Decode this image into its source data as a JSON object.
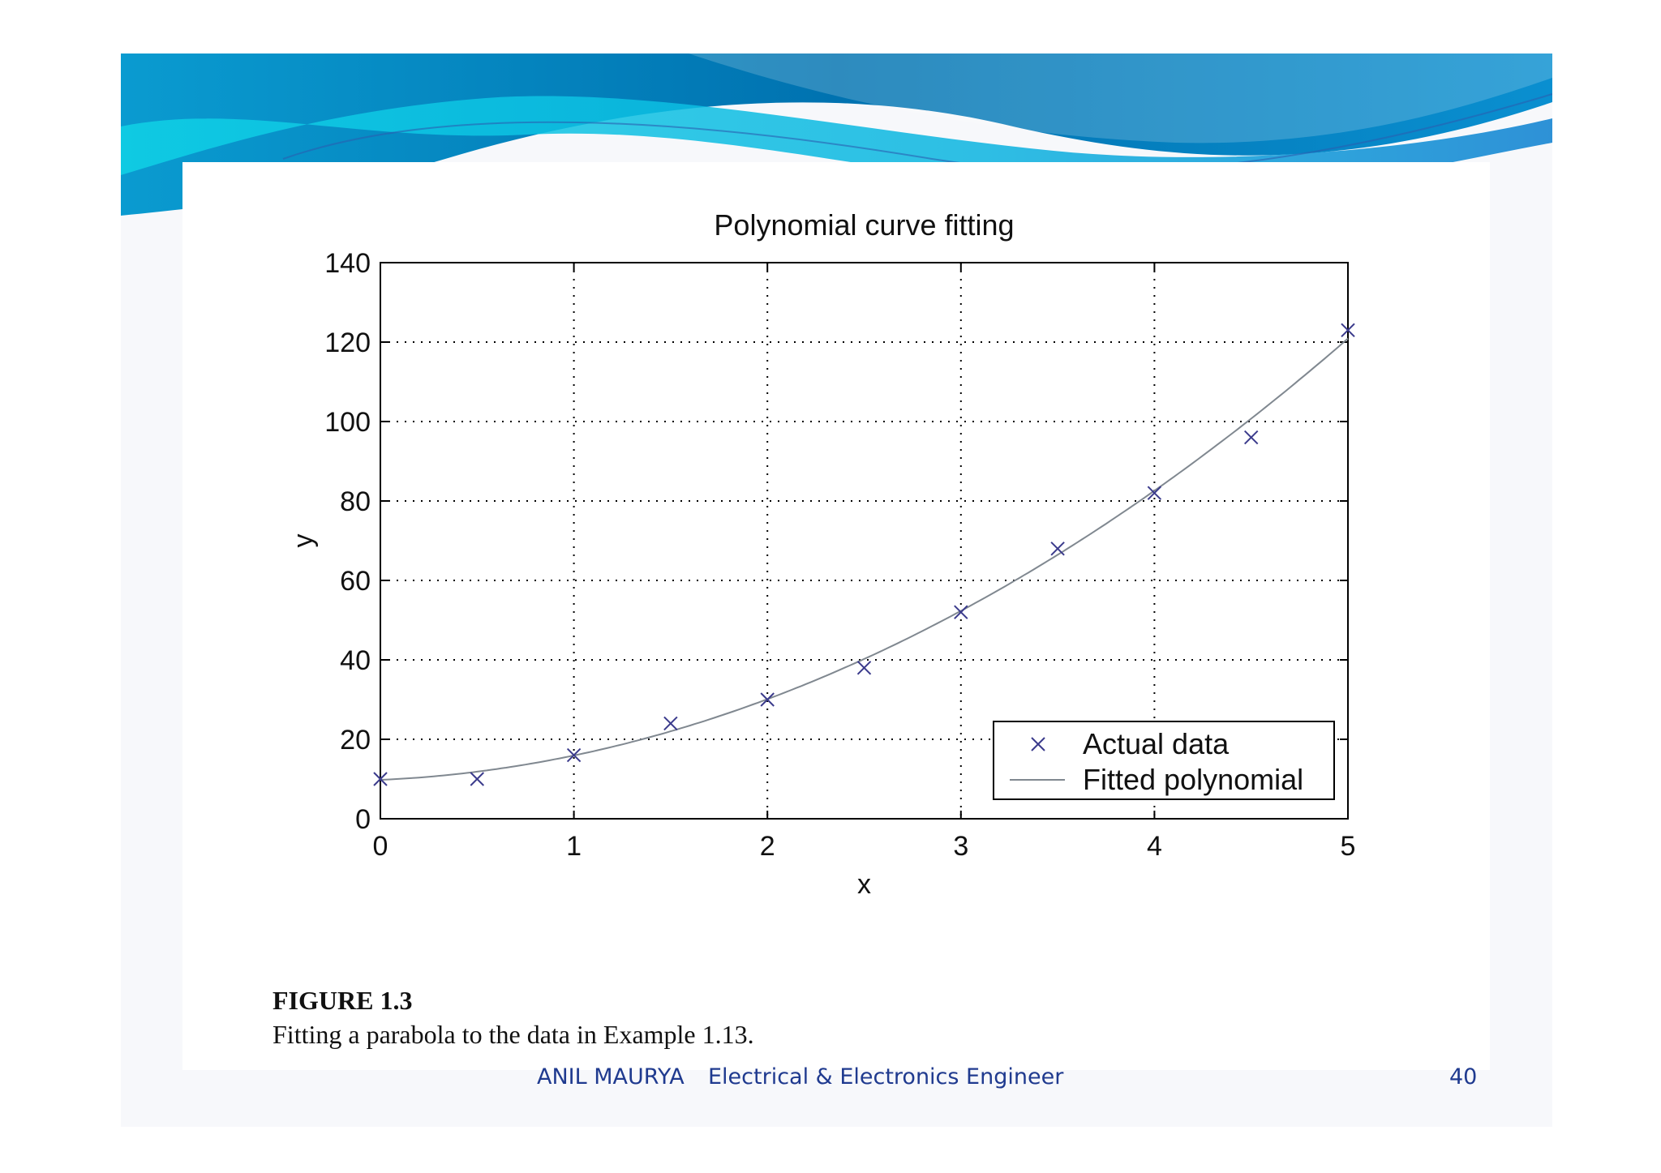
{
  "slide": {
    "footer_author": "ANIL MAURYA",
    "footer_role": "Electrical & Electronics Engineer",
    "page_number": "40"
  },
  "caption": {
    "title": "FIGURE 1.3",
    "text": "Fitting a parabola to the data in Example 1.13."
  },
  "colors": {
    "banner_dark": "#0072b0",
    "banner_light": "#10d2e6",
    "marker": "#3b3b8c",
    "fit_line": "#808890",
    "footer_text": "#1f3a8f"
  },
  "chart_data": {
    "type": "scatter",
    "title": "Polynomial curve fitting",
    "xlabel": "x",
    "ylabel": "y",
    "xlim": [
      0,
      5
    ],
    "ylim": [
      0,
      140
    ],
    "xticks": [
      0,
      1,
      2,
      3,
      4,
      5
    ],
    "yticks": [
      0,
      20,
      40,
      60,
      80,
      100,
      120,
      140
    ],
    "grid": true,
    "legend_position": "bottom-right",
    "series": [
      {
        "name": "Actual data",
        "kind": "markers",
        "marker": "x",
        "x": [
          0,
          0.5,
          1,
          1.5,
          2,
          2.5,
          3,
          3.5,
          4,
          4.5,
          5
        ],
        "y": [
          10,
          10,
          16,
          24,
          30,
          38,
          52,
          68,
          82,
          96,
          123
        ]
      },
      {
        "name": "Fitted polynomial",
        "kind": "line",
        "coefficients": [
          9.79,
          2.12,
          4.02
        ]
      }
    ]
  }
}
